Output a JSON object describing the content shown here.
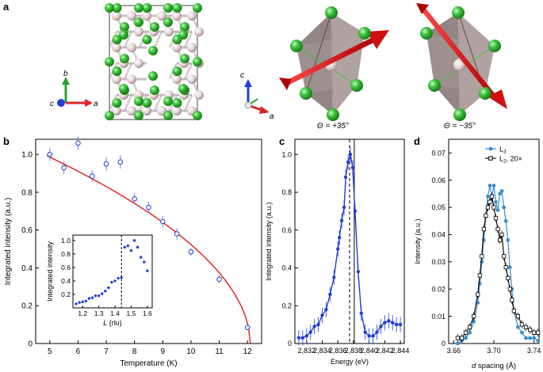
{
  "panels": {
    "a": {
      "label": "a",
      "axis_b": "b",
      "axis_c": "c",
      "axis_a": "a",
      "axis_c2": "c",
      "axis_a2": "a",
      "theta_pos": "Θ = +35°",
      "theta_neg": "Θ = −35°"
    },
    "b": {
      "label": "b"
    },
    "c": {
      "label": "c"
    },
    "d": {
      "label": "d"
    }
  },
  "colors": {
    "fit": "#e31a1c",
    "blue": "#1f3fd6",
    "l3": "#3a8fd0",
    "l2": "#111111",
    "green_atom": "#3cc43c",
    "octahedron": "#8c7a78",
    "arrow": "#e01818"
  },
  "chart_data": [
    {
      "id": "b-main",
      "type": "scatter",
      "xlabel": "Temperature (K)",
      "ylabel": "Integrated intensity (a.u.)",
      "xlim": [
        4.5,
        12.5
      ],
      "ylim": [
        0,
        1.08
      ],
      "xticks": [
        5,
        6,
        7,
        8,
        9,
        10,
        11,
        12
      ],
      "yticks": [
        0,
        0.2,
        0.4,
        0.6,
        0.8,
        1.0
      ],
      "xtick_labels": [
        "5",
        "6",
        "7",
        "8",
        "9",
        "10",
        "11",
        "12"
      ],
      "ytick_labels": [
        "0",
        "0.2",
        "0.4",
        "0.6",
        "0.8",
        "1.0"
      ],
      "points": [
        {
          "x": 5.0,
          "y": 1.0,
          "err": 0.035
        },
        {
          "x": 5.5,
          "y": 0.93,
          "err": 0.035
        },
        {
          "x": 6.0,
          "y": 1.06,
          "err": 0.035
        },
        {
          "x": 6.5,
          "y": 0.885,
          "err": 0.03
        },
        {
          "x": 7.0,
          "y": 0.95,
          "err": 0.035
        },
        {
          "x": 7.5,
          "y": 0.96,
          "err": 0.035
        },
        {
          "x": 8.0,
          "y": 0.765,
          "err": 0.03
        },
        {
          "x": 8.5,
          "y": 0.72,
          "err": 0.03
        },
        {
          "x": 9.0,
          "y": 0.645,
          "err": 0.03
        },
        {
          "x": 9.5,
          "y": 0.58,
          "err": 0.03
        },
        {
          "x": 10.0,
          "y": 0.485,
          "err": 0.02
        },
        {
          "x": 11.0,
          "y": 0.34,
          "err": 0.02
        },
        {
          "x": 12.0,
          "y": 0.085,
          "err": 0.015
        }
      ],
      "fit": {
        "Tc": 12.1,
        "A": 1.0,
        "T0": 4.8,
        "beta": 0.52
      }
    },
    {
      "id": "b-inset",
      "type": "scatter",
      "xlabel": "L (rlu)",
      "ylabel": "Integrated intensity",
      "xlim": [
        1.14,
        1.63
      ],
      "ylim": [
        0,
        1.08
      ],
      "xticks": [
        1.2,
        1.3,
        1.4,
        1.5,
        1.6
      ],
      "yticks": [
        0.2,
        0.4,
        0.6,
        0.8,
        1.0
      ],
      "xtick_labels": [
        "1.2",
        "1.3",
        "1.4",
        "1.5",
        "1.6"
      ],
      "ytick_labels": [
        "0.2",
        "0.4",
        "0.6",
        "0.8",
        "1.0"
      ],
      "vline": 1.44,
      "x": [
        1.16,
        1.18,
        1.2,
        1.22,
        1.24,
        1.26,
        1.28,
        1.3,
        1.32,
        1.34,
        1.36,
        1.38,
        1.4,
        1.42,
        1.44,
        1.46,
        1.48,
        1.5,
        1.52,
        1.54,
        1.56,
        1.58,
        1.6
      ],
      "y": [
        0.06,
        0.08,
        0.09,
        0.1,
        0.14,
        0.15,
        0.18,
        0.18,
        0.21,
        0.25,
        0.3,
        0.38,
        0.4,
        0.44,
        0.45,
        0.9,
        0.92,
        0.85,
        1.0,
        0.9,
        0.75,
        0.68,
        0.55
      ]
    },
    {
      "id": "c",
      "type": "line",
      "xlabel": "Energy (eV)",
      "ylabel": "Integrated intensity (a.u.)",
      "xlim": [
        2.8305,
        2.8445
      ],
      "ylim": [
        0,
        1.08
      ],
      "xticks": [
        2.832,
        2.834,
        2.836,
        2.838,
        2.84,
        2.842,
        2.844
      ],
      "yticks": [
        0,
        0.2,
        0.4,
        0.6,
        0.8,
        1.0
      ],
      "xtick_labels": [
        "2,832",
        "2,834",
        "2,836",
        "2,838",
        "2,840",
        "2,842",
        "2,844"
      ],
      "ytick_labels": [
        "0",
        "0.2",
        "0.4",
        "0.6",
        "0.8",
        "1.0"
      ],
      "vlines": [
        2.8375,
        2.8381
      ],
      "x": [
        2.831,
        2.8315,
        2.832,
        2.8325,
        2.833,
        2.8335,
        2.834,
        2.8345,
        2.835,
        2.8355,
        2.836,
        2.8362,
        2.8365,
        2.8368,
        2.837,
        2.8373,
        2.8376,
        2.8379,
        2.8382,
        2.8386,
        2.839,
        2.8395,
        2.84,
        2.8405,
        2.841,
        2.8415,
        2.842,
        2.8425,
        2.843,
        2.8435,
        2.844
      ],
      "y": [
        0.03,
        0.03,
        0.04,
        0.06,
        0.09,
        0.1,
        0.15,
        0.18,
        0.26,
        0.35,
        0.5,
        0.56,
        0.65,
        0.72,
        0.88,
        0.96,
        1.0,
        0.93,
        0.7,
        0.38,
        0.16,
        0.06,
        0.04,
        0.04,
        0.06,
        0.09,
        0.11,
        0.12,
        0.11,
        0.1,
        0.1
      ],
      "err": 0.04
    },
    {
      "id": "d",
      "type": "line",
      "xlabel": "d spacing (Å)",
      "xlabel_italic": "d",
      "xlabel_rest": " spacing (Å)",
      "ylabel": "Intensity (a.u.)",
      "xlim": [
        3.655,
        3.745
      ],
      "ylim": [
        0,
        0.075
      ],
      "xticks": [
        3.66,
        3.7,
        3.74
      ],
      "yticks": [
        0,
        0.01,
        0.02,
        0.03,
        0.04,
        0.05,
        0.06,
        0.07
      ],
      "xtick_labels": [
        "3.66",
        "3.70",
        "3.74"
      ],
      "ytick_labels": [
        "0",
        "0.01",
        "0.02",
        "0.03",
        "0.04",
        "0.05",
        "0.06",
        "0.07"
      ],
      "series": [
        {
          "name": "L3",
          "legend_main": "L",
          "legend_sub": "3",
          "x": [
            3.664,
            3.668,
            3.672,
            3.676,
            3.68,
            3.684,
            3.686,
            3.688,
            3.69,
            3.692,
            3.694,
            3.696,
            3.698,
            3.7,
            3.702,
            3.704,
            3.706,
            3.708,
            3.71,
            3.712,
            3.714,
            3.716,
            3.718,
            3.72,
            3.724,
            3.728,
            3.732,
            3.736,
            3.74,
            3.744
          ],
          "y": [
            0.0,
            0.001,
            0.002,
            0.004,
            0.008,
            0.015,
            0.022,
            0.03,
            0.038,
            0.047,
            0.054,
            0.058,
            0.054,
            0.058,
            0.052,
            0.049,
            0.055,
            0.056,
            0.05,
            0.045,
            0.038,
            0.028,
            0.02,
            0.012,
            0.006,
            0.004,
            0.002,
            0.002,
            0.002,
            0.001
          ]
        },
        {
          "name": "L2, 20×",
          "legend_main": "L",
          "legend_sub": "2",
          "legend_rest": ", 20×",
          "x": [
            3.664,
            3.668,
            3.672,
            3.676,
            3.68,
            3.684,
            3.686,
            3.688,
            3.69,
            3.692,
            3.694,
            3.696,
            3.698,
            3.7,
            3.702,
            3.704,
            3.706,
            3.708,
            3.71,
            3.712,
            3.714,
            3.716,
            3.718,
            3.72,
            3.724,
            3.728,
            3.732,
            3.736,
            3.74,
            3.744
          ],
          "y": [
            0.002,
            0.002,
            0.004,
            0.006,
            0.01,
            0.018,
            0.025,
            0.032,
            0.042,
            0.047,
            0.05,
            0.052,
            0.054,
            0.05,
            0.046,
            0.042,
            0.038,
            0.04,
            0.032,
            0.028,
            0.024,
            0.02,
            0.016,
            0.012,
            0.01,
            0.007,
            0.006,
            0.005,
            0.004,
            0.004
          ]
        }
      ]
    }
  ]
}
